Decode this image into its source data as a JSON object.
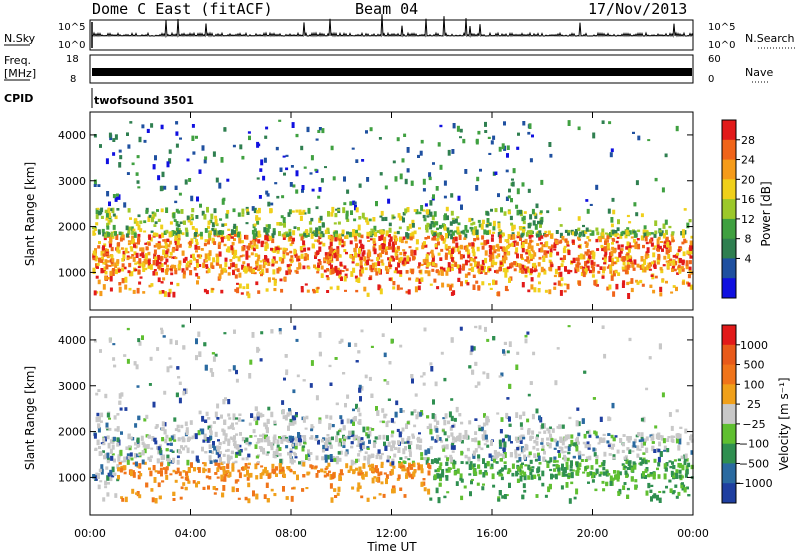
{
  "header": {
    "station": "Dome C East (fitACF)",
    "beam": "Beam 04",
    "date": "17/Nov/2013"
  },
  "top_panels": {
    "nsky_label": "N.Sky",
    "nsky_ticks": [
      "10^5",
      "10^0"
    ],
    "nsearch_label": "N.Search",
    "nsearch_ticks": [
      "10^5",
      "10^0"
    ],
    "freq_label_1": "Freq.",
    "freq_label_2": "[MHz]",
    "freq_ticks": [
      "18",
      "8"
    ],
    "nave_label": "Nave",
    "nave_ticks": [
      "60",
      "0"
    ],
    "cpid_label": "CPID",
    "cpid_value": "twofsound 3501"
  },
  "colors": {
    "blue": "#1f3fa0",
    "green": "#2e9a3a",
    "orange": "#f0841a",
    "red": "#e21a1a",
    "grey": "#c8c8c8"
  },
  "chart_data": [
    {
      "type": "heatmap",
      "name": "power",
      "ylabel": "Slant Range [km]",
      "yticks": [
        "4000",
        "3000",
        "2000",
        "1000"
      ],
      "ylim": [
        180,
        4500
      ],
      "colorbar": {
        "label": "Power [dB]",
        "ticks": [
          "28",
          "24",
          "20",
          "16",
          "12",
          "8",
          "4"
        ],
        "colors": [
          "#1010e0",
          "#1f50a0",
          "#2f7f50",
          "#3fa040",
          "#9cc82a",
          "#f0d01a",
          "#f59b1a",
          "#f0641a",
          "#e21a1a"
        ]
      },
      "bands": [
        {
          "t": [
            0,
            24
          ],
          "r": [
            1000,
            1800
          ],
          "level": "red"
        },
        {
          "t": [
            0,
            18
          ],
          "r": [
            1800,
            2300
          ],
          "level": "green"
        },
        {
          "t": [
            8,
            14
          ],
          "r": [
            600,
            1000
          ],
          "level": "red"
        }
      ]
    },
    {
      "type": "heatmap",
      "name": "velocity",
      "ylabel": "Slant Range [km]",
      "yticks": [
        "4000",
        "3000",
        "2000",
        "1000"
      ],
      "ylim": [
        180,
        4500
      ],
      "colorbar": {
        "label": "Velocity [m s⁻¹]",
        "ticks": [
          "1000",
          "500",
          "100",
          "25",
          "−25",
          "−100",
          "−500",
          "−1000"
        ],
        "colors": [
          "#1f3fa0",
          "#2a6aa0",
          "#2f8f50",
          "#5fbf30",
          "#c8c8c8",
          "#f0a01a",
          "#f0741a",
          "#e85a1a",
          "#e21a1a"
        ]
      },
      "xlabel": "Time UT",
      "xticks": [
        "00:00",
        "04:00",
        "08:00",
        "12:00",
        "16:00",
        "20:00",
        "00:00"
      ]
    }
  ]
}
